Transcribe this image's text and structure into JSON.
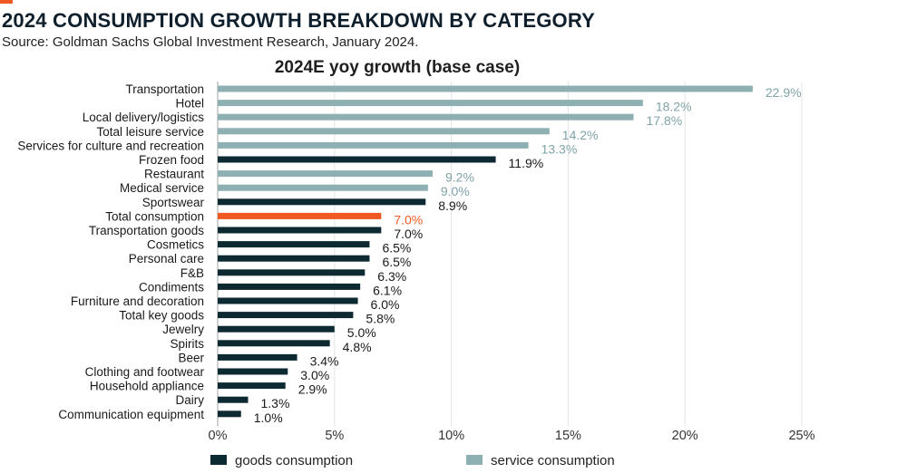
{
  "header": {
    "title": "2024 CONSUMPTION GROWTH BREAKDOWN BY CATEGORY",
    "source": "Source: Goldman Sachs Global Investment Research, January 2024."
  },
  "colors": {
    "goods": "#0d2a33",
    "service": "#8fb0b3",
    "highlight": "#f05a22",
    "accent": "#f05a22"
  },
  "chart_data": {
    "type": "bar",
    "orientation": "horizontal",
    "title": "2024E yoy growth (base case)",
    "xlim": [
      0,
      25
    ],
    "x_ticks": [
      "0%",
      "5%",
      "10%",
      "15%",
      "20%",
      "25%"
    ],
    "legend": {
      "placement": "bottom",
      "items": [
        {
          "key": "goods",
          "label": "goods consumption"
        },
        {
          "key": "service",
          "label": "service consumption"
        }
      ]
    },
    "categories": [
      "Transportation",
      "Hotel",
      "Local delivery/logistics",
      "Total leisure service",
      "Services for culture and recreation",
      "Frozen food",
      "Restaurant",
      "Medical service",
      "Sportswear",
      "Total consumption",
      "Transportation goods",
      "Cosmetics",
      "Personal care",
      "F&B",
      "Condiments",
      "Furniture and decoration",
      "Total key goods",
      "Jewelry",
      "Spirits",
      "Beer",
      "Clothing and footwear",
      "Household appliance",
      "Dairy",
      "Communication equipment"
    ],
    "values": [
      22.9,
      18.2,
      17.8,
      14.2,
      13.3,
      11.9,
      9.2,
      9.0,
      8.9,
      7.0,
      7.0,
      6.5,
      6.5,
      6.3,
      6.1,
      6.0,
      5.8,
      5.0,
      4.8,
      3.4,
      3.0,
      2.9,
      1.3,
      1.0
    ],
    "value_labels": [
      "22.9%",
      "18.2%",
      "17.8%",
      "14.2%",
      "13.3%",
      "11.9%",
      "9.2%",
      "9.0%",
      "8.9%",
      "7.0%",
      "7.0%",
      "6.5%",
      "6.5%",
      "6.3%",
      "6.1%",
      "6.0%",
      "5.8%",
      "5.0%",
      "4.8%",
      "3.4%",
      "3.0%",
      "2.9%",
      "1.3%",
      "1.0%"
    ],
    "group": [
      "service",
      "service",
      "service",
      "service",
      "service",
      "goods",
      "service",
      "service",
      "goods",
      "highlight",
      "goods",
      "goods",
      "goods",
      "goods",
      "goods",
      "goods",
      "goods",
      "goods",
      "goods",
      "goods",
      "goods",
      "goods",
      "goods",
      "goods"
    ]
  }
}
